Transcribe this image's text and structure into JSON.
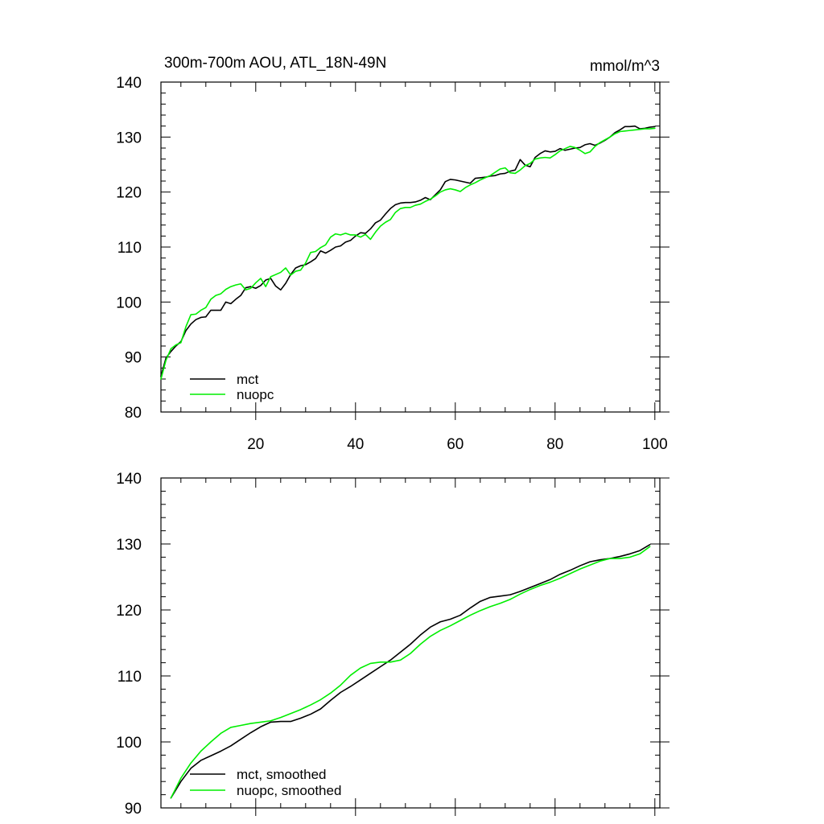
{
  "chart_data": [
    {
      "type": "line",
      "title": "300m-700m AOU, ATL_18N-49N",
      "units_label": "mmol/m^3",
      "xlabel": "",
      "ylabel": "",
      "xlim": [
        1,
        101
      ],
      "ylim": [
        80,
        140
      ],
      "xticks": [
        20,
        40,
        60,
        80,
        100
      ],
      "xtick_labels": [
        "20",
        "40",
        "60",
        "80",
        "100"
      ],
      "yticks": [
        80,
        90,
        100,
        110,
        120,
        130,
        140
      ],
      "ytick_labels": [
        "80",
        "90",
        "100",
        "110",
        "120",
        "130",
        "140"
      ],
      "legend_position": "bottom-left",
      "grid": false,
      "series": [
        {
          "name": "mct",
          "color": "#000000",
          "x": [
            1,
            2,
            3,
            4,
            5,
            6,
            7,
            8,
            9,
            10,
            11,
            12,
            13,
            14,
            15,
            16,
            17,
            18,
            19,
            20,
            21,
            22,
            23,
            24,
            25,
            26,
            27,
            28,
            29,
            30,
            31,
            32,
            33,
            34,
            35,
            36,
            37,
            38,
            39,
            40,
            41,
            42,
            43,
            44,
            45,
            46,
            47,
            48,
            49,
            50,
            51,
            52,
            53,
            54,
            55,
            56,
            57,
            58,
            59,
            60,
            61,
            62,
            63,
            64,
            65,
            66,
            67,
            68,
            69,
            70,
            71,
            72,
            73,
            74,
            75,
            76,
            77,
            78,
            79,
            80,
            81,
            82,
            83,
            84,
            85,
            86,
            87,
            88,
            89,
            90,
            91,
            92,
            93,
            94,
            95,
            96,
            97,
            98,
            99,
            100
          ],
          "values": [
            86.5,
            89.8,
            91.0,
            92.0,
            92.8,
            94.8,
            96.0,
            96.8,
            97.2,
            97.3,
            98.5,
            98.5,
            98.5,
            100.0,
            99.7,
            100.5,
            101.2,
            102.6,
            102.8,
            102.5,
            103.0,
            104.0,
            104.3,
            102.9,
            102.2,
            103.4,
            105.0,
            106.2,
            106.6,
            106.8,
            107.3,
            107.9,
            109.3,
            108.9,
            109.4,
            110.0,
            110.2,
            110.9,
            111.2,
            112.0,
            112.6,
            112.5,
            113.3,
            114.4,
            114.9,
            116.0,
            117.0,
            117.7,
            118.0,
            118.1,
            118.1,
            118.2,
            118.5,
            119.0,
            118.6,
            119.5,
            120.4,
            121.9,
            122.3,
            122.2,
            122.0,
            121.8,
            121.6,
            122.5,
            122.6,
            122.7,
            122.9,
            123.0,
            123.3,
            123.4,
            123.8,
            124.0,
            125.9,
            124.9,
            124.6,
            126.3,
            127.0,
            127.5,
            127.3,
            127.4,
            127.9,
            127.6,
            127.8,
            128.0,
            128.1,
            128.6,
            128.8,
            128.5,
            128.9,
            129.4,
            130.0,
            130.8,
            131.3,
            131.9,
            131.9,
            132.0,
            131.5,
            131.6,
            131.8,
            131.9
          ]
        },
        {
          "name": "nuopc",
          "color": "#00ee00",
          "x": [
            1,
            2,
            3,
            4,
            5,
            6,
            7,
            8,
            9,
            10,
            11,
            12,
            13,
            14,
            15,
            16,
            17,
            18,
            19,
            20,
            21,
            22,
            23,
            24,
            25,
            26,
            27,
            28,
            29,
            30,
            31,
            32,
            33,
            34,
            35,
            36,
            37,
            38,
            39,
            40,
            41,
            42,
            43,
            44,
            45,
            46,
            47,
            48,
            49,
            50,
            51,
            52,
            53,
            54,
            55,
            56,
            57,
            58,
            59,
            60,
            61,
            62,
            63,
            64,
            65,
            66,
            67,
            68,
            69,
            70,
            71,
            72,
            73,
            74,
            75,
            76,
            77,
            78,
            79,
            80,
            81,
            82,
            83,
            84,
            85,
            86,
            87,
            88,
            89,
            90,
            91,
            92,
            93,
            94,
            95,
            96,
            97,
            98,
            99,
            100
          ],
          "values": [
            86.0,
            89.4,
            91.5,
            92.2,
            92.6,
            95.5,
            97.7,
            97.8,
            98.5,
            99.0,
            100.5,
            101.2,
            101.5,
            102.3,
            102.8,
            103.1,
            103.3,
            102.2,
            102.5,
            103.5,
            104.3,
            102.8,
            104.6,
            105.0,
            105.4,
            106.2,
            104.9,
            105.6,
            105.8,
            107.1,
            109.0,
            109.2,
            109.9,
            110.4,
            111.8,
            112.4,
            112.2,
            112.5,
            112.2,
            112.2,
            111.8,
            112.3,
            111.4,
            112.7,
            113.8,
            114.5,
            115.0,
            116.3,
            117.0,
            117.2,
            117.2,
            117.6,
            117.8,
            118.3,
            118.7,
            119.3,
            120.0,
            120.4,
            120.6,
            120.4,
            120.1,
            120.8,
            121.3,
            121.7,
            122.2,
            122.6,
            123.0,
            123.6,
            124.2,
            124.4,
            123.5,
            123.4,
            124.0,
            124.8,
            125.2,
            126.0,
            126.2,
            126.3,
            126.2,
            126.8,
            127.5,
            127.9,
            128.3,
            128.1,
            127.6,
            127.0,
            127.3,
            128.3,
            129.0,
            129.5,
            130.0,
            130.6,
            131.0,
            131.1,
            131.2,
            131.3,
            131.4,
            131.5,
            131.5,
            131.6
          ]
        }
      ]
    },
    {
      "type": "line",
      "title": "",
      "xlabel": "",
      "ylabel": "",
      "xlim": [
        1,
        101
      ],
      "ylim": [
        90,
        140
      ],
      "xticks": [
        20,
        40,
        60,
        80,
        100
      ],
      "yticks": [
        90,
        100,
        110,
        120,
        130,
        140
      ],
      "ytick_labels": [
        "90",
        "100",
        "110",
        "120",
        "130",
        "140"
      ],
      "legend_position": "bottom-left",
      "grid": false,
      "series": [
        {
          "name": "mct, smoothed",
          "color": "#000000",
          "x": [
            3,
            5,
            7,
            9,
            11,
            13,
            15,
            17,
            19,
            21,
            23,
            25,
            27,
            29,
            31,
            33,
            35,
            37,
            39,
            41,
            43,
            45,
            47,
            49,
            51,
            53,
            55,
            57,
            59,
            61,
            63,
            65,
            67,
            69,
            71,
            73,
            75,
            77,
            79,
            81,
            83,
            85,
            87,
            89,
            91,
            93,
            95,
            97,
            99
          ],
          "values": [
            91.5,
            94.0,
            96.0,
            97.2,
            97.9,
            98.6,
            99.4,
            100.4,
            101.4,
            102.3,
            103.0,
            103.1,
            103.1,
            103.6,
            104.2,
            105.0,
            106.3,
            107.5,
            108.4,
            109.4,
            110.4,
            111.4,
            112.4,
            113.6,
            114.8,
            116.2,
            117.4,
            118.2,
            118.6,
            119.2,
            120.3,
            121.3,
            121.9,
            122.1,
            122.3,
            122.8,
            123.4,
            124.0,
            124.6,
            125.4,
            126.0,
            126.7,
            127.3,
            127.6,
            127.8,
            128.1,
            128.5,
            129.0,
            129.9
          ]
        },
        {
          "name": "nuopc, smoothed",
          "color": "#00ee00",
          "x": [
            3,
            5,
            7,
            9,
            11,
            13,
            15,
            17,
            19,
            21,
            23,
            25,
            27,
            29,
            31,
            33,
            35,
            37,
            39,
            41,
            43,
            45,
            47,
            49,
            51,
            53,
            55,
            57,
            59,
            61,
            63,
            65,
            67,
            69,
            71,
            73,
            75,
            77,
            79,
            81,
            83,
            85,
            87,
            89,
            91,
            93,
            95,
            97,
            99
          ],
          "values": [
            91.5,
            94.5,
            96.8,
            98.6,
            100.0,
            101.3,
            102.2,
            102.5,
            102.8,
            103.0,
            103.2,
            103.7,
            104.3,
            104.9,
            105.6,
            106.4,
            107.4,
            108.6,
            110.1,
            111.2,
            111.9,
            112.1,
            112.1,
            112.4,
            113.4,
            114.8,
            116.0,
            116.9,
            117.6,
            118.4,
            119.2,
            119.9,
            120.5,
            121.0,
            121.6,
            122.4,
            123.1,
            123.7,
            124.2,
            124.8,
            125.5,
            126.2,
            126.8,
            127.4,
            127.8,
            127.8,
            128.0,
            128.5,
            129.6
          ]
        }
      ]
    }
  ]
}
